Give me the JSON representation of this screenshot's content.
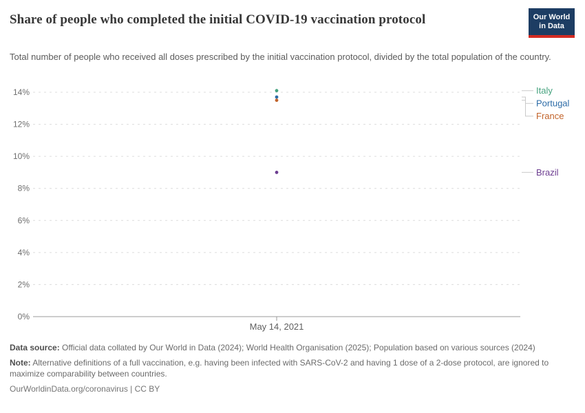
{
  "header": {
    "title": "Share of people who completed the initial COVID-19 vaccination protocol",
    "subtitle": "Total number of people who received all doses prescribed by the initial vaccination protocol, divided by the total population of the country.",
    "logo": {
      "line1": "Our World",
      "line2": "in Data",
      "bg_color": "#1d3d63",
      "accent_color": "#d42b22"
    }
  },
  "chart_data": {
    "type": "scatter",
    "title": "Share of people who completed the initial COVID-19 vaccination protocol",
    "x_tick_label": "May 14, 2021",
    "xlabel": "",
    "ylabel": "",
    "ylim": [
      0,
      14
    ],
    "yticks": [
      0,
      2,
      4,
      6,
      8,
      10,
      12,
      14
    ],
    "ytick_labels": [
      "0%",
      "2%",
      "4%",
      "6%",
      "8%",
      "10%",
      "12%",
      "14%"
    ],
    "grid": true,
    "legend_position": "right",
    "series": [
      {
        "name": "Italy",
        "value": 14.1,
        "color": "#45a27e"
      },
      {
        "name": "Portugal",
        "value": 13.7,
        "color": "#2d6ca7"
      },
      {
        "name": "France",
        "value": 13.5,
        "color": "#c2632a"
      },
      {
        "name": "Brazil",
        "value": 9.0,
        "color": "#6d3e91"
      }
    ],
    "style": {
      "gridline_color": "#dcdcdc",
      "axis_color": "#9b9b9b",
      "tick_label_color": "#6e6e6e",
      "connector_color": "#c9c9c9"
    }
  },
  "footer": {
    "data_source_label": "Data source:",
    "data_source_text": " Official data collated by Our World in Data (2024); World Health Organisation (2025); Population based on various sources (2024)",
    "note_label": "Note:",
    "note_text": " Alternative definitions of a full vaccination, e.g. having been infected with SARS-CoV-2 and having 1 dose of a 2-dose protocol, are ignored to maximize comparability between countries.",
    "license": "OurWorldinData.org/coronavirus | CC BY"
  }
}
